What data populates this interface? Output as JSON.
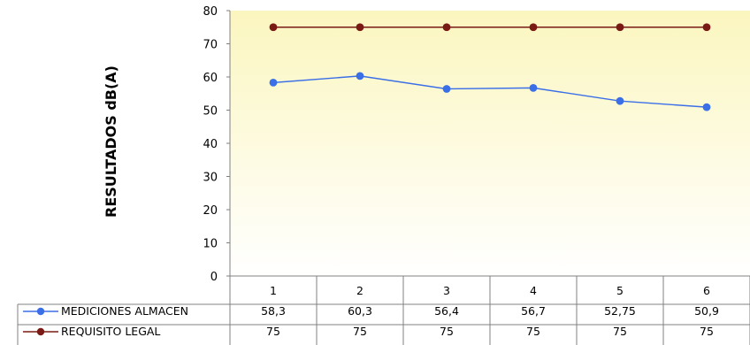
{
  "chart_data": {
    "type": "line",
    "categories": [
      "1",
      "2",
      "3",
      "4",
      "5",
      "6"
    ],
    "ylabel": "RESULTADOS dB(A)",
    "ylim": [
      0,
      80
    ],
    "yticks": [
      "0",
      "10",
      "20",
      "30",
      "40",
      "50",
      "60",
      "70",
      "80"
    ],
    "series": [
      {
        "name": "MEDICIONES ALMACEN",
        "values": [
          58.3,
          60.3,
          56.4,
          56.7,
          52.75,
          50.9
        ],
        "labels": [
          "58,3",
          "60,3",
          "56,4",
          "56,7",
          "52,75",
          "50,9"
        ],
        "color": "#3b6fe8"
      },
      {
        "name": "REQUISITO LEGAL",
        "values": [
          75,
          75,
          75,
          75,
          75,
          75
        ],
        "labels": [
          "75",
          "75",
          "75",
          "75",
          "75",
          "75"
        ],
        "color": "#7a1a14"
      }
    ],
    "background_gradient": [
      "#fbf6bf",
      "#ffffff"
    ],
    "data_table": true,
    "grid": false
  }
}
